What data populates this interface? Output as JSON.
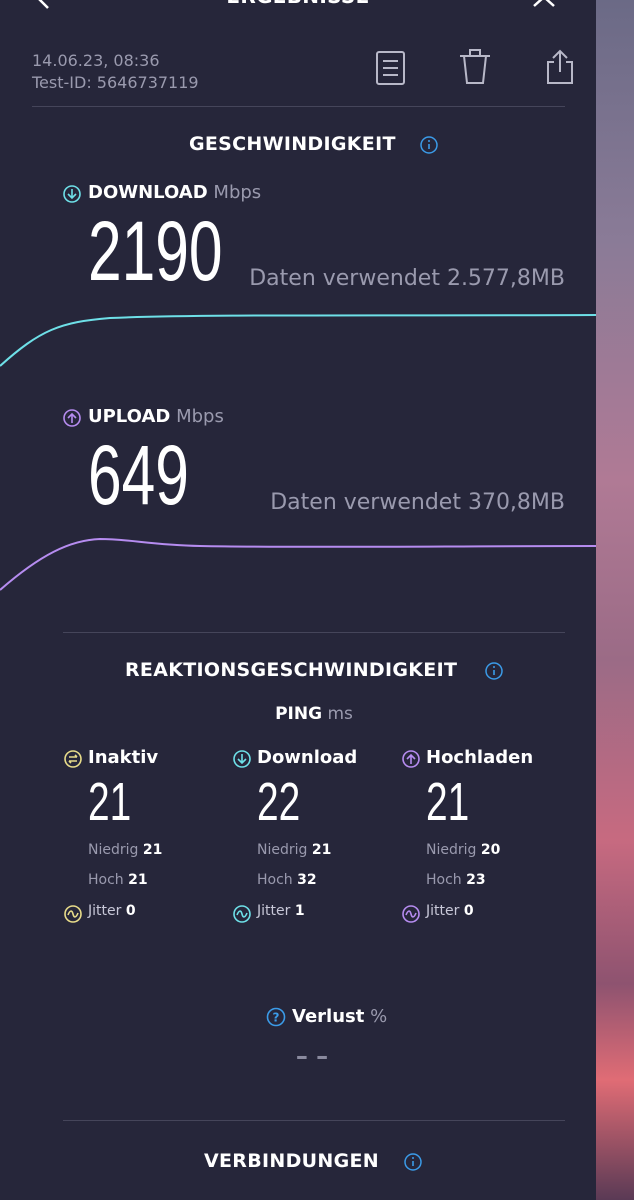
{
  "header": {
    "title": "ERGEBNISSE",
    "date": "14.06.23, 08:36",
    "test_id": "Test-ID: 5646737119"
  },
  "speed": {
    "title": "GESCHWINDIGKEIT",
    "download": {
      "label": "DOWNLOAD",
      "unit": "Mbps",
      "value": "2190",
      "data_used": "Daten verwendet 2.577,8MB"
    },
    "upload": {
      "label": "UPLOAD",
      "unit": "Mbps",
      "value": "649",
      "data_used": "Daten verwendet 370,8MB"
    }
  },
  "latency": {
    "title": "REAKTIONSGESCHWINDIGKEIT",
    "ping": {
      "label": "PING",
      "unit": "ms"
    },
    "columns": [
      {
        "label": "Inaktiv",
        "value": "21",
        "low_label": "Niedrig",
        "low": "21",
        "high_label": "Hoch",
        "high": "21",
        "jitter_label": "Jitter",
        "jitter": "0",
        "color": "#e8dc8a"
      },
      {
        "label": "Download",
        "value": "22",
        "low_label": "Niedrig",
        "low": "21",
        "high_label": "Hoch",
        "high": "32",
        "jitter_label": "Jitter",
        "jitter": "1",
        "color": "#6ee0e8"
      },
      {
        "label": "Hochladen",
        "value": "21",
        "low_label": "Niedrig",
        "low": "20",
        "high_label": "Hoch",
        "high": "23",
        "jitter_label": "Jitter",
        "jitter": "0",
        "color": "#b68cf0"
      }
    ],
    "loss": {
      "label": "Verlust",
      "unit": "%",
      "value": "– –"
    }
  },
  "connections": {
    "title": "VERBINDUNGEN"
  }
}
